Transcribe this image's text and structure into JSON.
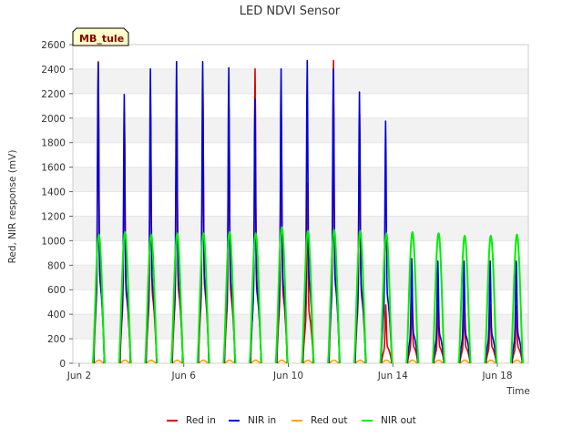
{
  "chart_data": {
    "type": "line",
    "title": "LED NDVI Sensor",
    "xlabel": "Time",
    "ylabel": "Red, NIR response (mV)",
    "site_label": "MB_tule",
    "ylim": [
      0,
      2600
    ],
    "y_ticks": [
      0,
      200,
      400,
      600,
      800,
      1000,
      1200,
      1400,
      1600,
      1800,
      2000,
      2200,
      2400,
      2600
    ],
    "xlim": [
      "2024-06-02",
      "2024-06-20"
    ],
    "x_ticks": [
      {
        "date": "2024-06-02",
        "label": "Jun 2"
      },
      {
        "date": "2024-06-06",
        "label": "Jun 6"
      },
      {
        "date": "2024-06-10",
        "label": "Jun 10"
      },
      {
        "date": "2024-06-14",
        "label": "Jun 14"
      },
      {
        "date": "2024-06-18",
        "label": "Jun 18"
      }
    ],
    "grid": "horizontal bands",
    "legend_position": "bottom",
    "series": [
      {
        "name": "Red in",
        "color": "#dd0000",
        "daily_peak": [
          {
            "date": "2024-06-02",
            "peak": 2480
          },
          {
            "date": "2024-06-03",
            "peak": 2060
          },
          {
            "date": "2024-06-04",
            "peak": 2050
          },
          {
            "date": "2024-06-05",
            "peak": 2170
          },
          {
            "date": "2024-06-06",
            "peak": 2250
          },
          {
            "date": "2024-06-07",
            "peak": 2100
          },
          {
            "date": "2024-06-08",
            "peak": 2420
          },
          {
            "date": "2024-06-09",
            "peak": 2060
          },
          {
            "date": "2024-06-10",
            "peak": 1480
          },
          {
            "date": "2024-06-11",
            "peak": 2490
          },
          {
            "date": "2024-06-12",
            "peak": 2050
          },
          {
            "date": "2024-06-13",
            "peak": 480
          },
          {
            "date": "2024-06-14",
            "peak": 500
          },
          {
            "date": "2024-06-15",
            "peak": 480
          },
          {
            "date": "2024-06-16",
            "peak": 480
          },
          {
            "date": "2024-06-17",
            "peak": 480
          },
          {
            "date": "2024-06-18",
            "peak": 470
          }
        ]
      },
      {
        "name": "NIR in",
        "color": "#0000dd",
        "daily_peak": [
          {
            "date": "2024-06-02",
            "peak": 2470
          },
          {
            "date": "2024-06-03",
            "peak": 2210
          },
          {
            "date": "2024-06-04",
            "peak": 2420
          },
          {
            "date": "2024-06-05",
            "peak": 2480
          },
          {
            "date": "2024-06-06",
            "peak": 2480
          },
          {
            "date": "2024-06-07",
            "peak": 2430
          },
          {
            "date": "2024-06-08",
            "peak": 2170
          },
          {
            "date": "2024-06-09",
            "peak": 2420
          },
          {
            "date": "2024-06-10",
            "peak": 2490
          },
          {
            "date": "2024-06-11",
            "peak": 2420
          },
          {
            "date": "2024-06-12",
            "peak": 2230
          },
          {
            "date": "2024-06-13",
            "peak": 1990
          },
          {
            "date": "2024-06-14",
            "peak": 860
          },
          {
            "date": "2024-06-15",
            "peak": 840
          },
          {
            "date": "2024-06-16",
            "peak": 840
          },
          {
            "date": "2024-06-17",
            "peak": 840
          },
          {
            "date": "2024-06-18",
            "peak": 840
          }
        ]
      },
      {
        "name": "Red out",
        "color": "#ffa500",
        "daily_peak": [
          {
            "date": "2024-06-02",
            "peak": 25
          },
          {
            "date": "2024-06-03",
            "peak": 25
          },
          {
            "date": "2024-06-04",
            "peak": 25
          },
          {
            "date": "2024-06-05",
            "peak": 25
          },
          {
            "date": "2024-06-06",
            "peak": 25
          },
          {
            "date": "2024-06-07",
            "peak": 25
          },
          {
            "date": "2024-06-08",
            "peak": 25
          },
          {
            "date": "2024-06-09",
            "peak": 25
          },
          {
            "date": "2024-06-10",
            "peak": 25
          },
          {
            "date": "2024-06-11",
            "peak": 25
          },
          {
            "date": "2024-06-12",
            "peak": 25
          },
          {
            "date": "2024-06-13",
            "peak": 25
          },
          {
            "date": "2024-06-14",
            "peak": 25
          },
          {
            "date": "2024-06-15",
            "peak": 25
          },
          {
            "date": "2024-06-16",
            "peak": 25
          },
          {
            "date": "2024-06-17",
            "peak": 25
          },
          {
            "date": "2024-06-18",
            "peak": 25
          }
        ]
      },
      {
        "name": "NIR out",
        "color": "#00ee00",
        "daily_peak": [
          {
            "date": "2024-06-02",
            "peak": 1050
          },
          {
            "date": "2024-06-03",
            "peak": 1070
          },
          {
            "date": "2024-06-04",
            "peak": 1050
          },
          {
            "date": "2024-06-05",
            "peak": 1060
          },
          {
            "date": "2024-06-06",
            "peak": 1060
          },
          {
            "date": "2024-06-07",
            "peak": 1070
          },
          {
            "date": "2024-06-08",
            "peak": 1060
          },
          {
            "date": "2024-06-09",
            "peak": 1110
          },
          {
            "date": "2024-06-10",
            "peak": 1080
          },
          {
            "date": "2024-06-11",
            "peak": 1090
          },
          {
            "date": "2024-06-12",
            "peak": 1080
          },
          {
            "date": "2024-06-13",
            "peak": 1060
          },
          {
            "date": "2024-06-14",
            "peak": 1070
          },
          {
            "date": "2024-06-15",
            "peak": 1060
          },
          {
            "date": "2024-06-16",
            "peak": 1040
          },
          {
            "date": "2024-06-17",
            "peak": 1040
          },
          {
            "date": "2024-06-18",
            "peak": 1050
          }
        ]
      }
    ]
  }
}
